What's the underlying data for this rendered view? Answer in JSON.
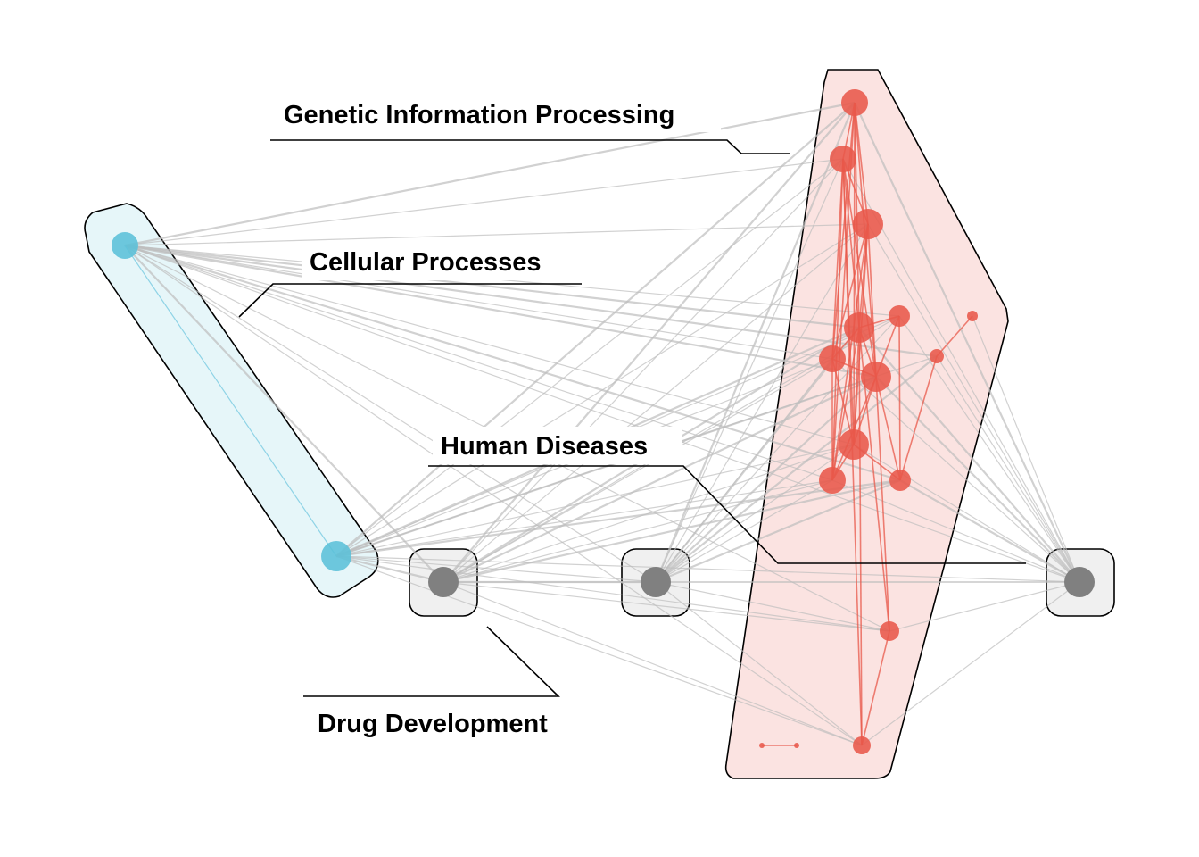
{
  "colors": {
    "edge": "#bdbdbd",
    "cellular_node": "#5bc0d8",
    "cellular_edge": "#8fd3e6",
    "cellular_hull_fill": "#e6f6f9",
    "genetic_node": "#e8584a",
    "genetic_edge": "#e8584a",
    "genetic_hull_fill": "#fbe3e1",
    "neutral_node": "#808080",
    "neutral_hull_fill": "#f0f0f0"
  },
  "groups": [
    {
      "id": "genetic",
      "label": "Genetic Information Processing"
    },
    {
      "id": "cellular",
      "label": "Cellular Processes"
    },
    {
      "id": "human",
      "label": "Human Diseases"
    },
    {
      "id": "drug",
      "label": "Drug Development"
    }
  ]
}
